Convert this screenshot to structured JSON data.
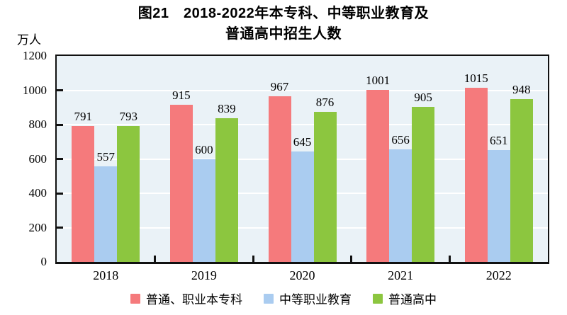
{
  "title_display": {
    "line1": "图21　2018-2022年本专科、中等职业教育及",
    "line2": "普通高中招生人数"
  },
  "chart_data": {
    "type": "bar",
    "title": "图21 2018-2022年本专科、中等职业教育及普通高中招生人数",
    "xlabel": "",
    "ylabel": "万人",
    "ylim": [
      0,
      1200
    ],
    "y_ticks": [
      0,
      200,
      400,
      600,
      800,
      1000,
      1200
    ],
    "grid": true,
    "grid_color": "#ffffff",
    "plot_background": "#EAF2F7",
    "legend_position": "bottom",
    "categories": [
      "2018",
      "2019",
      "2020",
      "2021",
      "2022"
    ],
    "series": [
      {
        "name": "普通、职业本专科",
        "color": "#F57A7C",
        "values": [
          791,
          915,
          967,
          1001,
          1015
        ]
      },
      {
        "name": "中等职业教育",
        "color": "#AACCF0",
        "values": [
          557,
          600,
          645,
          656,
          651
        ]
      },
      {
        "name": "普通高中",
        "color": "#8CC63F",
        "values": [
          793,
          839,
          876,
          905,
          948
        ]
      }
    ],
    "value_labels_shown": true
  }
}
